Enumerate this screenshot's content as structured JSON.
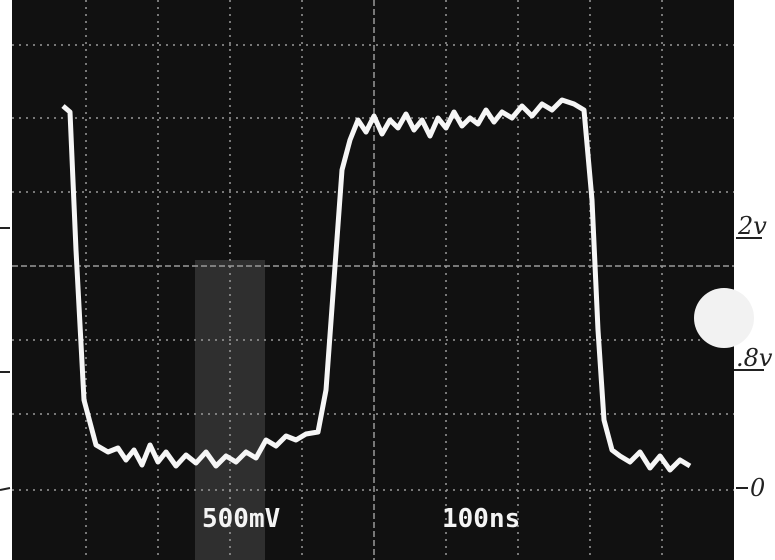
{
  "screen": {
    "volts_per_div": "500mV",
    "time_per_div": "100ns"
  },
  "annotations": {
    "high_level": "2v",
    "threshold_level": ".8v",
    "zero_level": "0"
  }
}
